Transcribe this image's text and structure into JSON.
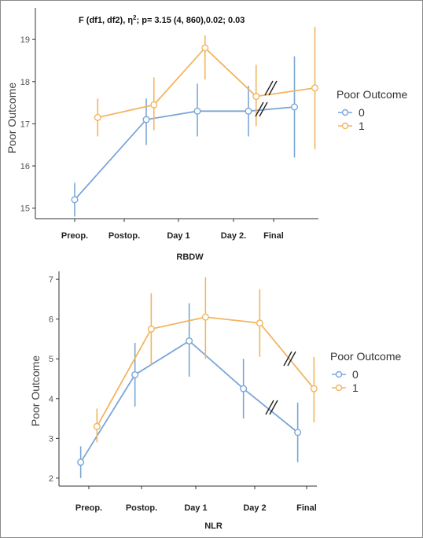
{
  "chart_data": [
    {
      "type": "line",
      "annotation": "F (df1, df2), η²; p= 3.15 (4, 860),0.02; 0.03",
      "ylabel": "Poor Outcome",
      "xlabel": "RBDW",
      "categories": [
        "Preop.",
        "Postop.",
        "Day 1",
        "Day 2.",
        "Final"
      ],
      "y_ticks": [
        15,
        16,
        17,
        18,
        19
      ],
      "ylim": [
        14.75,
        19.75
      ],
      "grid": false,
      "legend": {
        "title": "Poor Outcome",
        "position": "right"
      },
      "series": [
        {
          "name": "0",
          "color": "#7aa6d8",
          "points": [
            {
              "x": 0,
              "y": 15.2,
              "lo": 14.8,
              "hi": 15.6
            },
            {
              "x": 1.4,
              "y": 17.1,
              "lo": 16.5,
              "hi": 17.6
            },
            {
              "x": 2.4,
              "y": 17.3,
              "lo": 16.7,
              "hi": 17.95
            },
            {
              "x": 3.4,
              "y": 17.3,
              "lo": 16.7,
              "hi": 17.9
            },
            {
              "x": 4.3,
              "y": 17.4,
              "lo": 16.2,
              "hi": 18.6
            }
          ]
        },
        {
          "name": "1",
          "color": "#f2b560",
          "points": [
            {
              "x": 0.45,
              "y": 17.15,
              "lo": 16.7,
              "hi": 17.6
            },
            {
              "x": 1.55,
              "y": 17.45,
              "lo": 16.85,
              "hi": 18.1
            },
            {
              "x": 2.55,
              "y": 18.8,
              "lo": 18.05,
              "hi": 19.1
            },
            {
              "x": 3.55,
              "y": 17.65,
              "lo": 16.95,
              "hi": 18.4
            },
            {
              "x": 4.7,
              "y": 17.85,
              "lo": 16.4,
              "hi": 19.3
            }
          ]
        }
      ]
    },
    {
      "type": "line",
      "ylabel": "Poor Outcome",
      "xlabel": "NLR",
      "categories": [
        "Preop.",
        "Postop.",
        "Day 1",
        "Day 2",
        "Final"
      ],
      "y_ticks": [
        2,
        3,
        4,
        5,
        6,
        7
      ],
      "ylim": [
        1.8,
        7.2
      ],
      "grid": false,
      "legend": {
        "title": "Poor Outcome",
        "position": "right"
      },
      "series": [
        {
          "name": "0",
          "color": "#7aa6d8",
          "points": [
            {
              "x": -0.15,
              "y": 2.4,
              "lo": 2.0,
              "hi": 2.8
            },
            {
              "x": 0.85,
              "y": 4.6,
              "lo": 3.8,
              "hi": 5.4
            },
            {
              "x": 1.85,
              "y": 5.45,
              "lo": 4.55,
              "hi": 6.4
            },
            {
              "x": 2.85,
              "y": 4.25,
              "lo": 3.5,
              "hi": 5.0
            },
            {
              "x": 3.85,
              "y": 3.15,
              "lo": 2.4,
              "hi": 3.9
            }
          ]
        },
        {
          "name": "1",
          "color": "#f2b560",
          "points": [
            {
              "x": 0.15,
              "y": 3.3,
              "lo": 2.9,
              "hi": 3.75
            },
            {
              "x": 1.15,
              "y": 5.75,
              "lo": 4.85,
              "hi": 6.65
            },
            {
              "x": 2.15,
              "y": 6.05,
              "lo": 5.0,
              "hi": 7.05
            },
            {
              "x": 3.15,
              "y": 5.9,
              "lo": 5.05,
              "hi": 6.75
            },
            {
              "x": 4.15,
              "y": 4.25,
              "lo": 3.4,
              "hi": 5.05
            }
          ]
        }
      ]
    }
  ]
}
